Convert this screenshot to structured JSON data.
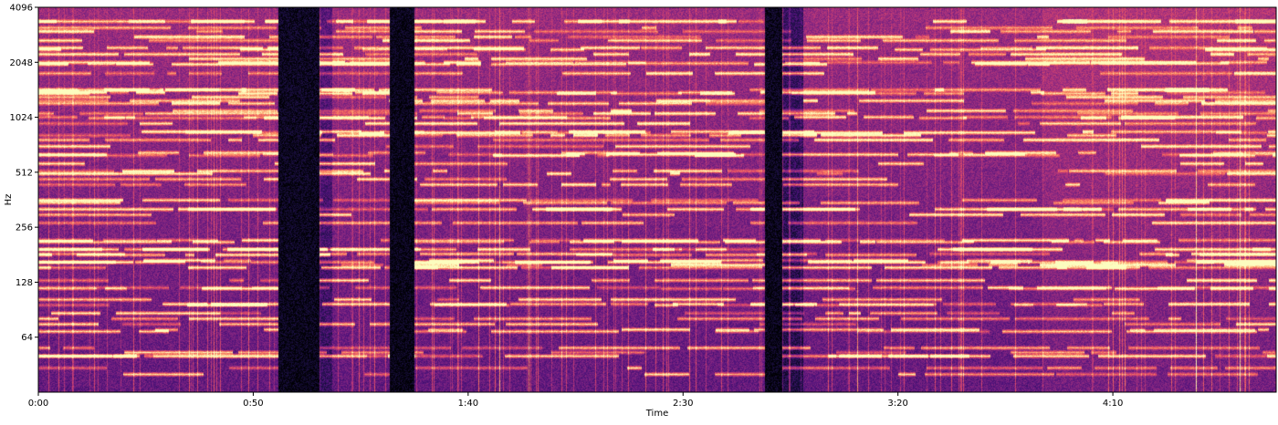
{
  "chart_data": {
    "type": "heatmap",
    "kind": "spectrogram",
    "colormap": "magma",
    "title": "",
    "xlabel": "Time",
    "ylabel": "Hz",
    "x_scale": "time",
    "y_scale": "log2",
    "xlim_seconds": [
      0,
      288
    ],
    "ylim_hz": [
      32,
      4096
    ],
    "x_ticks": [
      {
        "seconds": 0,
        "label": "0:00"
      },
      {
        "seconds": 50,
        "label": "0:50"
      },
      {
        "seconds": 100,
        "label": "1:40"
      },
      {
        "seconds": 150,
        "label": "2:30"
      },
      {
        "seconds": 200,
        "label": "3:20"
      },
      {
        "seconds": 250,
        "label": "4:10"
      }
    ],
    "y_ticks": [
      {
        "hz": 64,
        "label": "64"
      },
      {
        "hz": 128,
        "label": "128"
      },
      {
        "hz": 256,
        "label": "256"
      },
      {
        "hz": 512,
        "label": "512"
      },
      {
        "hz": 1024,
        "label": "1024"
      },
      {
        "hz": 2048,
        "label": "2048"
      },
      {
        "hz": 4096,
        "label": "4096"
      }
    ],
    "grid": false,
    "legend": "none"
  }
}
